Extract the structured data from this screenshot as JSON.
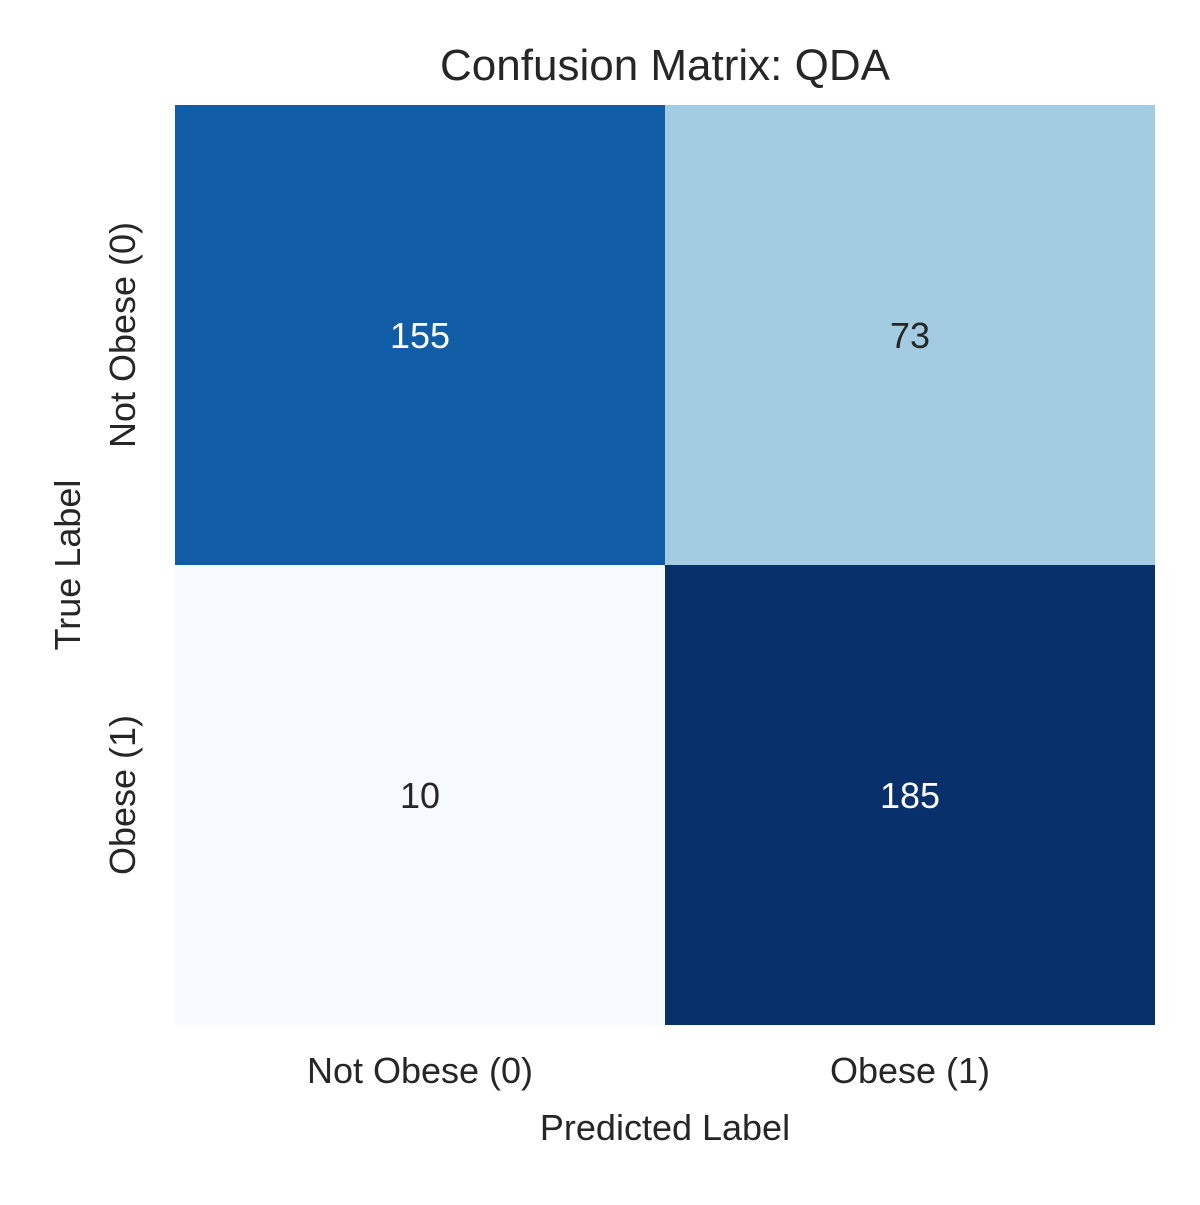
{
  "chart_data": {
    "type": "heatmap",
    "title": "Confusion Matrix: QDA",
    "xlabel": "Predicted Label",
    "ylabel": "True Label",
    "x_categories": [
      "Not Obese (0)",
      "Obese (1)"
    ],
    "y_categories": [
      "Not Obese (0)",
      "Obese (1)"
    ],
    "values": [
      [
        155,
        73
      ],
      [
        10,
        185
      ]
    ],
    "colormap": "Blues",
    "color_low": "#f7fbff",
    "color_high": "#08306b",
    "text_color_dark": "#262626",
    "text_color_light": "#ffffff",
    "colorbar": false,
    "grid": false
  }
}
